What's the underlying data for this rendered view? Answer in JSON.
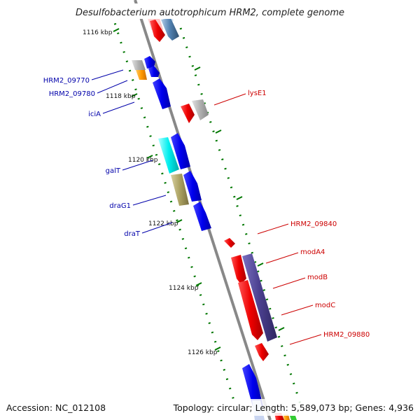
{
  "title": "Desulfobacterium autotrophicum HRM2, complete genome",
  "footer": {
    "accession": "Accession: NC_012108",
    "summary": "Topology: circular; Length: 5,589,073 bp; Genes: 4,936"
  },
  "ticks": [
    "1116 kbp",
    "1118 kbp",
    "1120 kbp",
    "1122 kbp",
    "1124 kbp",
    "1126 kbp"
  ],
  "genes_minus": [
    "HRM2_09770",
    "HRM2_09780",
    "iciA",
    "galT",
    "draG1",
    "draT"
  ],
  "genes_plus": [
    "lysE1",
    "HRM2_09840",
    "modA4",
    "modB",
    "modC",
    "HRM2_09880"
  ],
  "colors": {
    "backbone": "#888888",
    "red_gene": "#ee0000",
    "blue_gene": "#0000ee",
    "grey_gene": "#aaaaaa",
    "orange_gene": "#ff9900",
    "cyan_gene": "#00eeee",
    "olive_gene": "#aaa060",
    "purple_gene": "#4a3f8e",
    "tick_green": "#007700",
    "label_blue": "#0000aa",
    "label_red": "#cc0000"
  }
}
